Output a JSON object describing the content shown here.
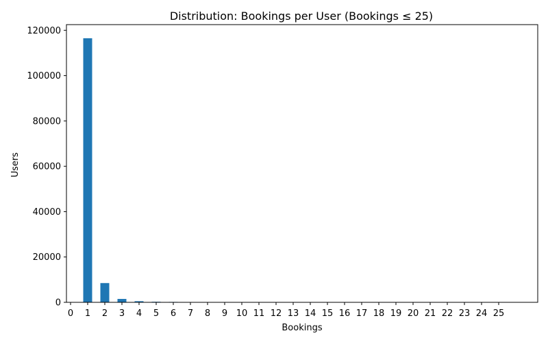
{
  "chart_data": {
    "type": "bar",
    "title": "Distribution: Bookings per User (Bookings ≤ 25)",
    "xlabel": "Bookings",
    "ylabel": "Users",
    "categories": [
      "0",
      "1",
      "2",
      "3",
      "4",
      "5",
      "6",
      "7",
      "8",
      "9",
      "10",
      "11",
      "12",
      "13",
      "14",
      "15",
      "16",
      "17",
      "18",
      "19",
      "20",
      "21",
      "22",
      "23",
      "24",
      "25"
    ],
    "values": [
      0,
      116500,
      8500,
      1500,
      500,
      250,
      180,
      120,
      60,
      30,
      15,
      10,
      5,
      5,
      3,
      2,
      2,
      1,
      1,
      1,
      1,
      0,
      0,
      0,
      0,
      0
    ],
    "yticks": [
      0,
      20000,
      40000,
      60000,
      80000,
      100000,
      120000
    ],
    "ylim": [
      0,
      122500
    ],
    "grid": false,
    "bar_color": "#1f77b4"
  }
}
